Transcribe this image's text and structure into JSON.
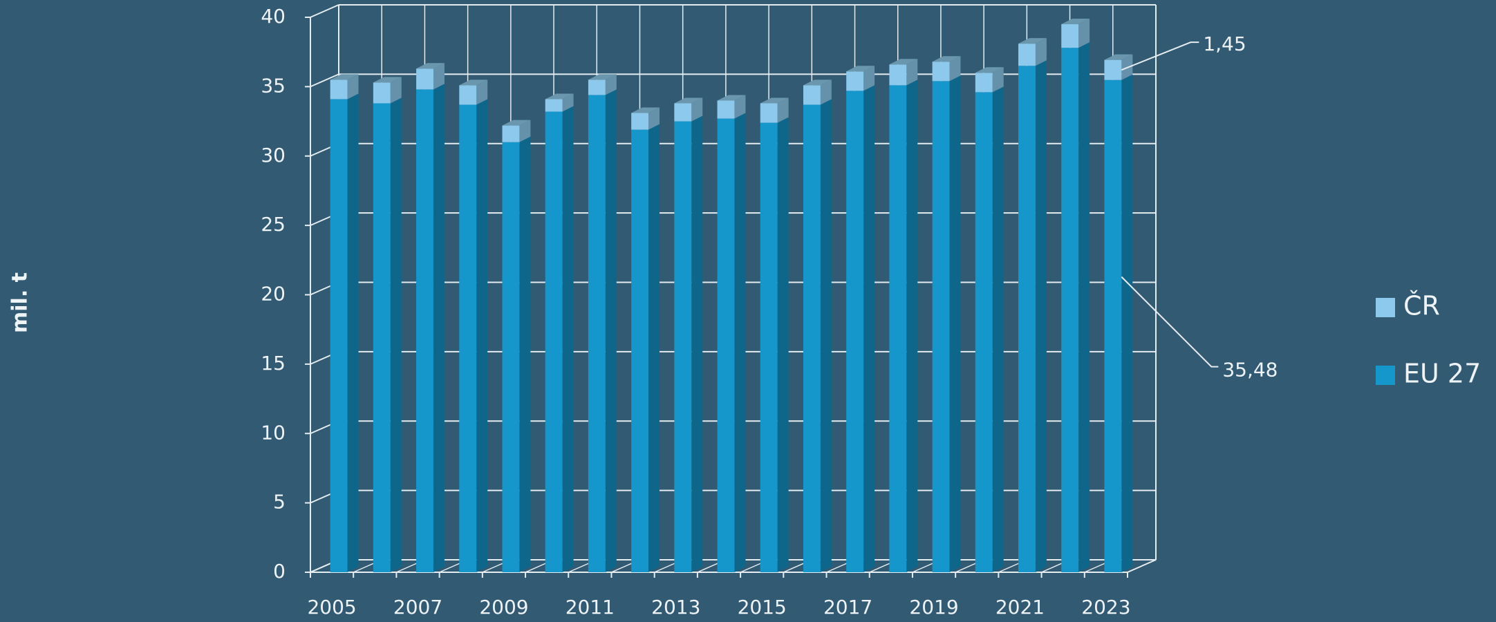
{
  "chart_data": {
    "type": "bar3d_stacked",
    "y_label": "mil. t",
    "categories": [
      "2005",
      null,
      "2007",
      null,
      "2009",
      null,
      "2011",
      null,
      "2013",
      null,
      "2015",
      null,
      "2017",
      null,
      "2019",
      null,
      "2021",
      null,
      "2023"
    ],
    "series": [
      {
        "name": "EU 27",
        "color": "#1597cc",
        "values": [
          34.1,
          33.8,
          34.8,
          33.7,
          31.0,
          33.2,
          34.4,
          31.9,
          32.5,
          32.7,
          32.4,
          33.7,
          34.7,
          35.1,
          35.4,
          34.6,
          36.5,
          37.8,
          35.48
        ],
        "value_labels": [
          null,
          null,
          null,
          null,
          null,
          null,
          null,
          null,
          null,
          null,
          null,
          null,
          null,
          null,
          null,
          null,
          null,
          null,
          "35,48"
        ]
      },
      {
        "name": "ČR",
        "color": "#8dc9ec",
        "values": [
          1.4,
          1.5,
          1.5,
          1.4,
          1.2,
          0.9,
          1.1,
          1.2,
          1.3,
          1.3,
          1.4,
          1.4,
          1.4,
          1.5,
          1.4,
          1.4,
          1.6,
          1.7,
          1.45
        ],
        "value_labels": [
          null,
          null,
          null,
          null,
          null,
          null,
          null,
          null,
          null,
          null,
          null,
          null,
          null,
          null,
          null,
          null,
          null,
          null,
          "1,45"
        ]
      }
    ],
    "ylim": [
      0,
      40
    ],
    "yticks": [
      0,
      5,
      10,
      15,
      20,
      25,
      30,
      35,
      40
    ],
    "grid": true,
    "legend": "right",
    "stacked": true
  }
}
